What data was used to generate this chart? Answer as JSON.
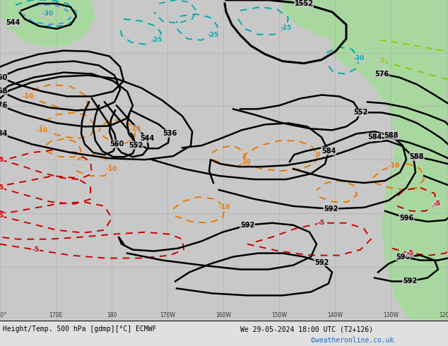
{
  "title": "Height/Temp. 500 hPa [gdmp][°C] ECMWF",
  "datetime_str": "We 29-05-2024 18:00 UTC (T2+126)",
  "watermark": "©weatheronline.co.uk",
  "bg_color": "#c8c8c8",
  "green_color": "#a8d8a0",
  "grid_color": "#b0b0b0",
  "figsize": [
    6.34,
    4.9
  ],
  "dpi": 100,
  "bottom_bar_color": "#e0e0e0",
  "black_lw": 1.8,
  "orange_color": "#e87800",
  "red_color": "#cc0000",
  "cyan_color": "#00aaaa",
  "lime_color": "#88cc00"
}
